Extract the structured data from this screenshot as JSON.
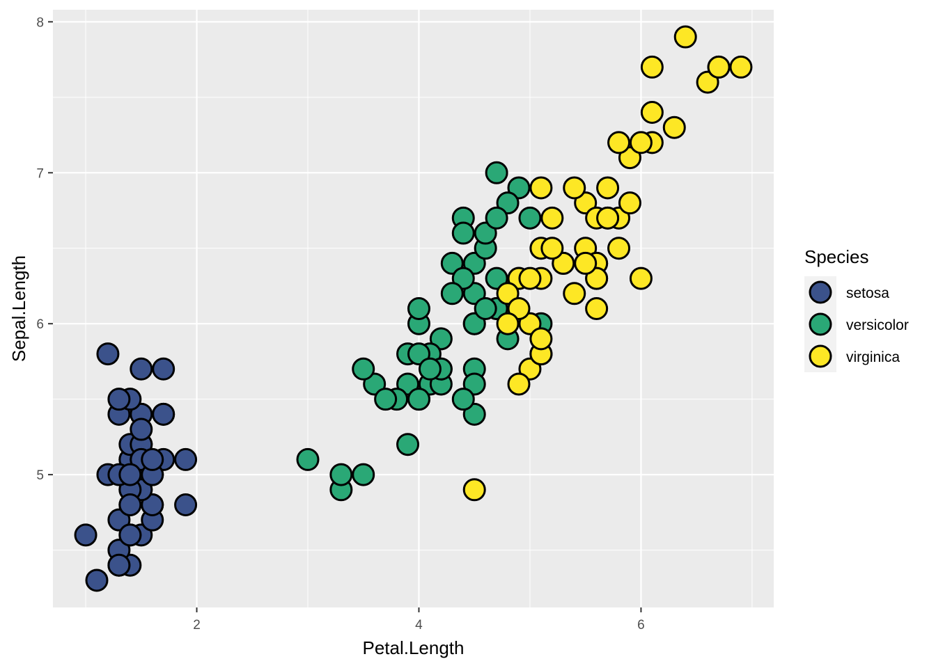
{
  "chart_data": {
    "type": "scatter",
    "title": "",
    "xlabel": "Petal.Length",
    "ylabel": "Sepal.Length",
    "xlim": [
      0.705,
      7.195
    ],
    "ylim": [
      4.12,
      8.08
    ],
    "x_ticks": [
      2,
      4,
      6
    ],
    "y_ticks": [
      5,
      6,
      7,
      8
    ],
    "x_tick_labels": [
      "2",
      "4",
      "6"
    ],
    "y_tick_labels": [
      "5",
      "6",
      "7",
      "8"
    ],
    "grid": true,
    "panel_background": "#ebebeb",
    "grid_color": "#ffffff",
    "legend": {
      "title": "Species",
      "placement": "right",
      "labels": [
        "setosa",
        "versicolor",
        "virginica"
      ]
    },
    "series": [
      {
        "name": "setosa",
        "color": "#3b528b",
        "points": [
          [
            1.4,
            5.1
          ],
          [
            1.4,
            4.9
          ],
          [
            1.3,
            4.7
          ],
          [
            1.5,
            4.6
          ],
          [
            1.4,
            5.0
          ],
          [
            1.7,
            5.4
          ],
          [
            1.4,
            4.6
          ],
          [
            1.5,
            5.0
          ],
          [
            1.4,
            4.4
          ],
          [
            1.5,
            4.9
          ],
          [
            1.5,
            5.4
          ],
          [
            1.6,
            4.8
          ],
          [
            1.4,
            4.8
          ],
          [
            1.1,
            4.3
          ],
          [
            1.2,
            5.8
          ],
          [
            1.5,
            5.7
          ],
          [
            1.3,
            5.4
          ],
          [
            1.4,
            5.1
          ],
          [
            1.7,
            5.7
          ],
          [
            1.5,
            5.1
          ],
          [
            1.7,
            5.4
          ],
          [
            1.5,
            5.1
          ],
          [
            1.0,
            4.6
          ],
          [
            1.7,
            5.1
          ],
          [
            1.9,
            4.8
          ],
          [
            1.6,
            5.0
          ],
          [
            1.6,
            5.0
          ],
          [
            1.5,
            5.2
          ],
          [
            1.4,
            5.2
          ],
          [
            1.6,
            4.7
          ],
          [
            1.6,
            4.8
          ],
          [
            1.5,
            5.4
          ],
          [
            1.5,
            5.2
          ],
          [
            1.4,
            5.5
          ],
          [
            1.5,
            4.9
          ],
          [
            1.2,
            5.0
          ],
          [
            1.3,
            5.5
          ],
          [
            1.4,
            4.9
          ],
          [
            1.3,
            4.4
          ],
          [
            1.5,
            5.1
          ],
          [
            1.3,
            5.0
          ],
          [
            1.3,
            4.5
          ],
          [
            1.3,
            4.4
          ],
          [
            1.6,
            5.0
          ],
          [
            1.9,
            5.1
          ],
          [
            1.4,
            4.8
          ],
          [
            1.6,
            5.1
          ],
          [
            1.4,
            4.6
          ],
          [
            1.5,
            5.3
          ],
          [
            1.4,
            5.0
          ]
        ]
      },
      {
        "name": "versicolor",
        "color": "#2aa876",
        "points": [
          [
            4.7,
            7.0
          ],
          [
            4.5,
            6.4
          ],
          [
            4.9,
            6.9
          ],
          [
            4.0,
            5.5
          ],
          [
            4.6,
            6.5
          ],
          [
            4.5,
            5.7
          ],
          [
            4.7,
            6.3
          ],
          [
            3.3,
            4.9
          ],
          [
            4.6,
            6.6
          ],
          [
            3.9,
            5.2
          ],
          [
            3.5,
            5.0
          ],
          [
            4.2,
            5.9
          ],
          [
            4.0,
            6.0
          ],
          [
            4.7,
            6.1
          ],
          [
            3.6,
            5.6
          ],
          [
            4.4,
            6.7
          ],
          [
            4.5,
            5.6
          ],
          [
            4.1,
            5.8
          ],
          [
            4.5,
            6.2
          ],
          [
            3.9,
            5.6
          ],
          [
            4.8,
            5.9
          ],
          [
            4.0,
            6.1
          ],
          [
            4.9,
            6.3
          ],
          [
            4.7,
            6.1
          ],
          [
            4.3,
            6.4
          ],
          [
            4.4,
            6.6
          ],
          [
            4.8,
            6.8
          ],
          [
            5.0,
            6.7
          ],
          [
            4.5,
            6.0
          ],
          [
            3.5,
            5.7
          ],
          [
            3.8,
            5.5
          ],
          [
            3.7,
            5.5
          ],
          [
            3.9,
            5.8
          ],
          [
            5.1,
            6.0
          ],
          [
            4.5,
            5.4
          ],
          [
            4.5,
            6.0
          ],
          [
            4.7,
            6.7
          ],
          [
            4.4,
            6.3
          ],
          [
            4.1,
            5.6
          ],
          [
            4.0,
            5.5
          ],
          [
            4.4,
            5.5
          ],
          [
            4.6,
            6.1
          ],
          [
            4.0,
            5.8
          ],
          [
            3.3,
            5.0
          ],
          [
            4.2,
            5.6
          ],
          [
            4.2,
            5.7
          ],
          [
            4.2,
            5.7
          ],
          [
            4.3,
            6.2
          ],
          [
            3.0,
            5.1
          ],
          [
            4.1,
            5.7
          ]
        ]
      },
      {
        "name": "virginica",
        "color": "#fde725",
        "points": [
          [
            6.0,
            6.3
          ],
          [
            5.1,
            5.8
          ],
          [
            5.9,
            7.1
          ],
          [
            5.6,
            6.3
          ],
          [
            5.8,
            6.5
          ],
          [
            6.6,
            7.6
          ],
          [
            4.5,
            4.9
          ],
          [
            6.3,
            7.3
          ],
          [
            5.8,
            6.7
          ],
          [
            6.1,
            7.2
          ],
          [
            5.1,
            6.5
          ],
          [
            5.3,
            6.4
          ],
          [
            5.5,
            6.8
          ],
          [
            5.0,
            5.7
          ],
          [
            5.1,
            5.8
          ],
          [
            5.3,
            6.4
          ],
          [
            5.5,
            6.5
          ],
          [
            6.7,
            7.7
          ],
          [
            6.9,
            7.7
          ],
          [
            5.0,
            6.0
          ],
          [
            5.7,
            6.9
          ],
          [
            4.9,
            5.6
          ],
          [
            6.7,
            7.7
          ],
          [
            4.9,
            6.3
          ],
          [
            5.7,
            6.7
          ],
          [
            6.0,
            7.2
          ],
          [
            4.8,
            6.2
          ],
          [
            4.9,
            6.1
          ],
          [
            5.6,
            6.4
          ],
          [
            5.8,
            7.2
          ],
          [
            6.1,
            7.4
          ],
          [
            6.4,
            7.9
          ],
          [
            5.6,
            6.4
          ],
          [
            5.1,
            6.3
          ],
          [
            5.6,
            6.1
          ],
          [
            6.1,
            7.7
          ],
          [
            5.6,
            6.3
          ],
          [
            5.5,
            6.4
          ],
          [
            4.8,
            6.0
          ],
          [
            5.4,
            6.9
          ],
          [
            5.6,
            6.7
          ],
          [
            5.1,
            6.9
          ],
          [
            5.1,
            5.8
          ],
          [
            5.9,
            6.8
          ],
          [
            5.7,
            6.7
          ],
          [
            5.2,
            6.7
          ],
          [
            5.0,
            6.3
          ],
          [
            5.2,
            6.5
          ],
          [
            5.4,
            6.2
          ],
          [
            5.1,
            5.9
          ]
        ]
      }
    ]
  }
}
